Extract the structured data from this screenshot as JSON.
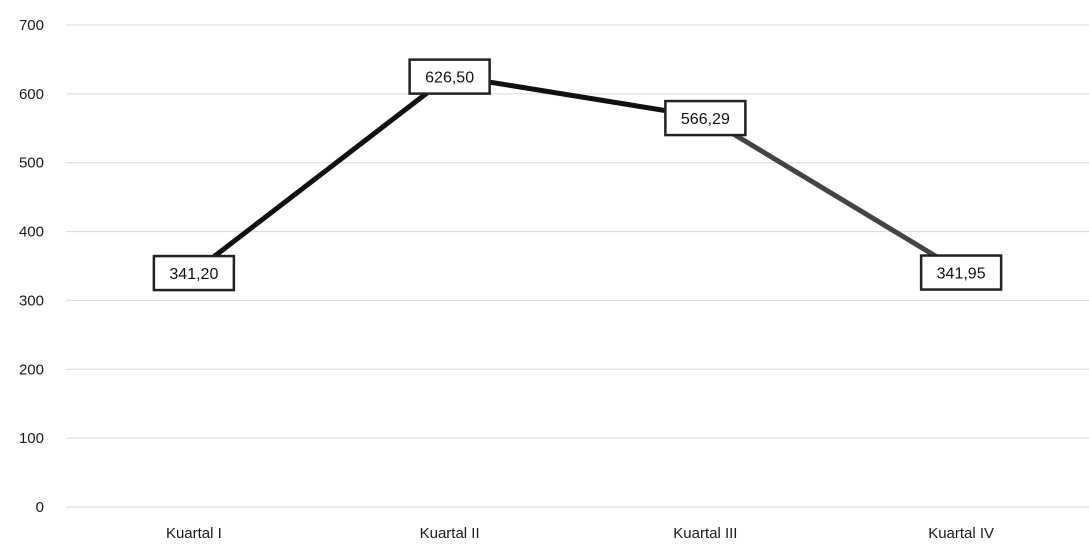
{
  "chart_data": {
    "type": "line",
    "title": "",
    "xlabel": "",
    "ylabel": "",
    "categories": [
      "Kuartal I",
      "Kuartal II",
      "Kuartal III",
      "Kuartal IV"
    ],
    "series": [
      {
        "values": [
          341.2,
          626.5,
          566.29,
          341.95
        ],
        "labels": [
          "341,20",
          "626,50",
          "566,29",
          "341,95"
        ],
        "color": "#111111",
        "last_segment_color": "#444444"
      }
    ],
    "ylim": [
      0,
      700
    ],
    "yticks": [
      0,
      100,
      200,
      300,
      400,
      500,
      600,
      700
    ],
    "grid": true,
    "legend": "none"
  }
}
